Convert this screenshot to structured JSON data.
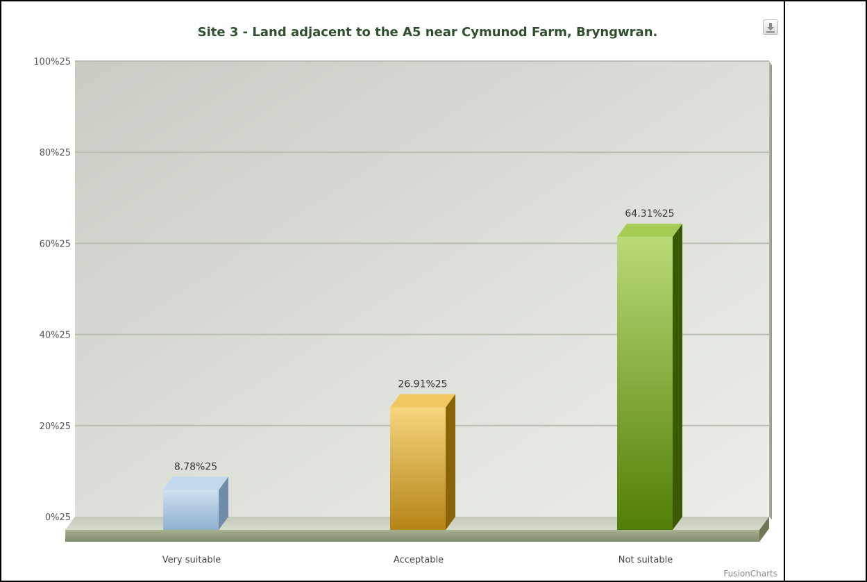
{
  "chart_data": {
    "type": "bar",
    "title": "Site 3 - Land adjacent to the A5 near Cymunod Farm, Bryngwran.",
    "xlabel": "",
    "ylabel": "",
    "categories": [
      "Very suitable",
      "Acceptable",
      "Not suitable"
    ],
    "values": [
      8.78,
      26.91,
      64.31
    ],
    "value_labels": [
      "8.78%25",
      "26.91%25",
      "64.31%25"
    ],
    "ylim": [
      0,
      100
    ],
    "y_ticks": [
      0,
      20,
      40,
      60,
      80,
      100
    ],
    "y_tick_labels": [
      "0%25",
      "20%25",
      "40%25",
      "60%25",
      "80%25",
      "100%25"
    ],
    "grid": true,
    "style": "3d-column",
    "colors": [
      "#a7c5e0",
      "#e8b73c",
      "#7fa52e"
    ]
  },
  "branding": {
    "watermark": "FusionCharts"
  },
  "toolbar": {
    "export_icon": "download-icon"
  }
}
